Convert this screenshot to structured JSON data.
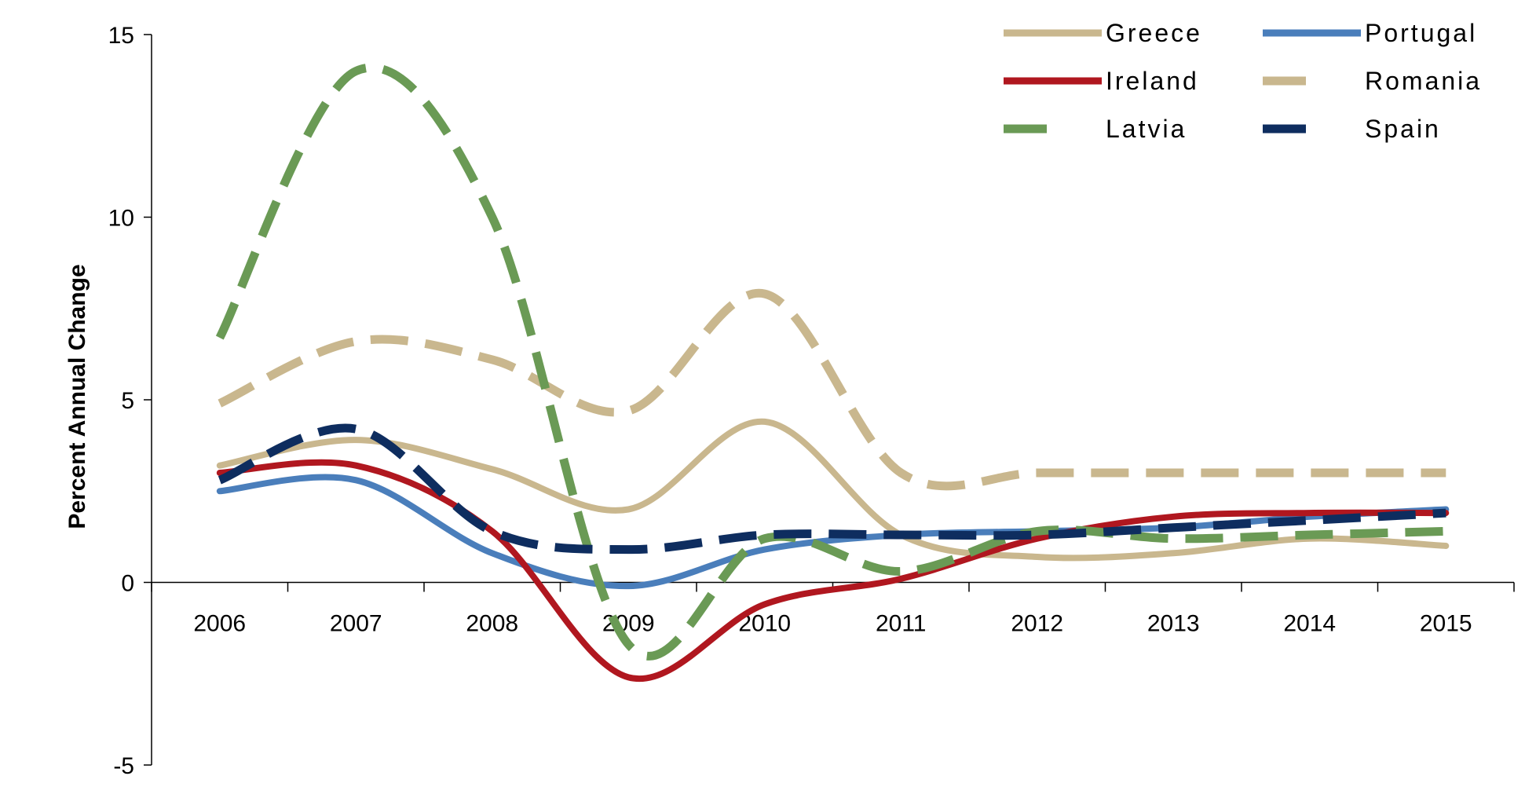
{
  "chart_data": {
    "type": "line",
    "title": "",
    "xlabel": "",
    "ylabel": "Percent Annual Change",
    "x": [
      "2006",
      "2007",
      "2008",
      "2009",
      "2010",
      "2011",
      "2012",
      "2013",
      "2014",
      "2015"
    ],
    "ylim": [
      -5,
      15
    ],
    "yticks": [
      -5,
      0,
      5,
      10,
      15
    ],
    "grid": false,
    "legend_position": "top-right",
    "series": [
      {
        "name": "Greece",
        "color": "#C9B78E",
        "style": "solid",
        "values": [
          3.2,
          3.9,
          3.1,
          2.0,
          4.4,
          1.3,
          0.7,
          0.8,
          1.2,
          1.0
        ]
      },
      {
        "name": "Portugal",
        "color": "#4A7EBB",
        "style": "solid",
        "values": [
          2.5,
          2.8,
          0.8,
          -0.1,
          0.9,
          1.3,
          1.4,
          1.5,
          1.8,
          2.0
        ]
      },
      {
        "name": "Ireland",
        "color": "#B0171F",
        "style": "solid",
        "values": [
          3.0,
          3.2,
          1.4,
          -2.6,
          -0.6,
          0.1,
          1.2,
          1.8,
          1.9,
          1.9
        ]
      },
      {
        "name": "Romania",
        "color": "#C9B78E",
        "style": "dashed",
        "values": [
          4.9,
          6.6,
          6.1,
          4.7,
          7.9,
          3.0,
          3.0,
          3.0,
          3.0,
          3.0
        ]
      },
      {
        "name": "Latvia",
        "color": "#6A9A55",
        "style": "dashed",
        "values": [
          6.7,
          14.0,
          10.0,
          -1.7,
          1.2,
          0.3,
          1.4,
          1.2,
          1.3,
          1.4
        ]
      },
      {
        "name": "Spain",
        "color": "#0E2D5F",
        "style": "dashed",
        "values": [
          2.8,
          4.2,
          1.4,
          0.9,
          1.3,
          1.3,
          1.3,
          1.5,
          1.7,
          1.9
        ]
      }
    ]
  }
}
